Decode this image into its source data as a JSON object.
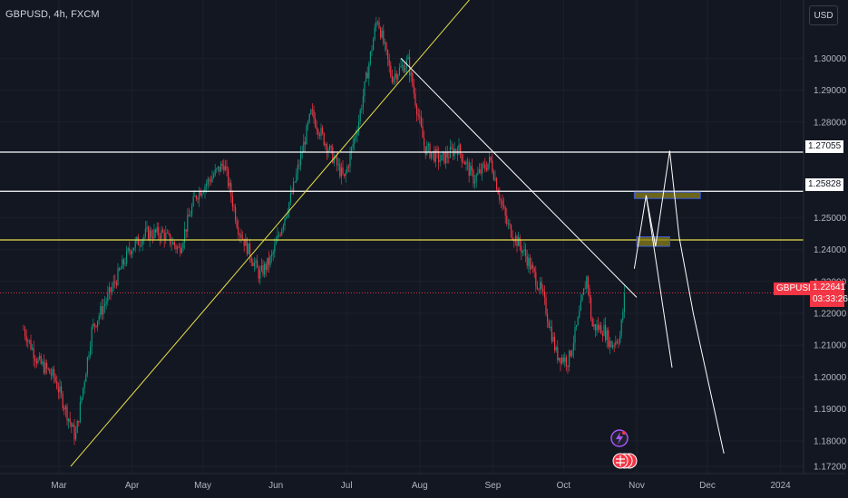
{
  "header": {
    "symbol_title": "GBPUSD, 4h, FXCM",
    "currency": "USD"
  },
  "price_marker": {
    "symbol": "GBPUSD",
    "price": "1.22641",
    "countdown": "03:33:26",
    "color": "#f23645"
  },
  "level_labels": [
    "1.27055",
    "1.25828"
  ],
  "colors": {
    "background": "#131722",
    "bull": "#089981",
    "bear": "#f23645",
    "trendline_yellow": "#e6e04a",
    "projection_white": "#ffffff",
    "zone_fill": "#8a7f1a",
    "axis_text": "#b2b5be"
  },
  "chart_data": {
    "type": "candlestick",
    "title": "GBPUSD, 4h, FXCM",
    "x_labels": [
      "Mar",
      "Apr",
      "May",
      "Jun",
      "Jul",
      "Aug",
      "Sep",
      "Oct",
      "Nov",
      "Dec",
      "2024"
    ],
    "y_ticks": [
      "1.30000",
      "1.29000",
      "1.28000",
      "1.25000",
      "1.24000",
      "1.23000",
      "1.22000",
      "1.21000",
      "1.20000",
      "1.19000",
      "1.18000",
      "1.17200"
    ],
    "ylim": [
      1.172,
      1.316
    ],
    "price_path": [
      [
        "2023-02-14",
        1.215
      ],
      [
        "2023-02-20",
        1.205
      ],
      [
        "2023-02-27",
        1.2
      ],
      [
        "2023-03-08",
        1.181
      ],
      [
        "2023-03-15",
        1.215
      ],
      [
        "2023-03-23",
        1.227
      ],
      [
        "2023-03-31",
        1.24
      ],
      [
        "2023-04-07",
        1.245
      ],
      [
        "2023-04-14",
        1.245
      ],
      [
        "2023-04-21",
        1.24
      ],
      [
        "2023-04-28",
        1.257
      ],
      [
        "2023-05-10",
        1.267
      ],
      [
        "2023-05-16",
        1.247
      ],
      [
        "2023-05-25",
        1.232
      ],
      [
        "2023-05-30",
        1.237
      ],
      [
        "2023-06-08",
        1.258
      ],
      [
        "2023-06-16",
        1.283
      ],
      [
        "2023-06-21",
        1.275
      ],
      [
        "2023-06-30",
        1.262
      ],
      [
        "2023-07-06",
        1.28
      ],
      [
        "2023-07-14",
        1.313
      ],
      [
        "2023-07-20",
        1.294
      ],
      [
        "2023-07-27",
        1.299
      ],
      [
        "2023-08-03",
        1.272
      ],
      [
        "2023-08-10",
        1.268
      ],
      [
        "2023-08-17",
        1.272
      ],
      [
        "2023-08-24",
        1.262
      ],
      [
        "2023-08-31",
        1.268
      ],
      [
        "2023-09-07",
        1.248
      ],
      [
        "2023-09-15",
        1.238
      ],
      [
        "2023-09-22",
        1.226
      ],
      [
        "2023-09-28",
        1.207
      ],
      [
        "2023-10-03",
        1.205
      ],
      [
        "2023-10-07",
        1.217
      ],
      [
        "2023-10-11",
        1.232
      ],
      [
        "2023-10-13",
        1.216
      ],
      [
        "2023-10-18",
        1.215
      ],
      [
        "2023-10-21",
        1.21
      ],
      [
        "2023-10-25",
        1.213
      ],
      [
        "2023-10-27",
        1.2264
      ]
    ],
    "horizontal_levels": [
      {
        "value": 1.27055,
        "color": "#ffffff",
        "label": "1.27055"
      },
      {
        "value": 1.25828,
        "color": "#ffffff",
        "label": "1.25828"
      },
      {
        "value": 1.243,
        "color": "#e6e04a",
        "label": ""
      }
    ],
    "current_price": {
      "value": 1.22641,
      "color": "#f23645"
    },
    "trendlines": [
      {
        "from": [
          "2023-03-06",
          1.172
        ],
        "to": [
          "2023-08-24",
          1.32
        ],
        "color": "#e6e04a"
      },
      {
        "from": [
          "2023-07-24",
          1.3
        ],
        "to": [
          "2023-11-01",
          1.225
        ],
        "color": "#ffffff"
      }
    ],
    "zones": [
      {
        "x": [
          "2023-10-31",
          "2023-11-28"
        ],
        "y": [
          1.256,
          1.258
        ]
      },
      {
        "x": [
          "2023-11-01",
          "2023-11-15"
        ],
        "y": [
          1.241,
          1.244
        ]
      }
    ],
    "projection": [
      [
        "2023-10-31",
        1.234
      ],
      [
        "2023-11-05",
        1.257
      ],
      [
        "2023-11-09",
        1.241
      ],
      [
        "2023-11-15",
        1.271
      ],
      [
        "2023-11-19",
        1.244
      ],
      [
        "2023-11-25",
        1.22
      ],
      [
        "2023-12-08",
        1.176
      ]
    ],
    "projection_alt": [
      [
        "2023-11-05",
        1.257
      ],
      [
        "2023-11-16",
        1.203
      ]
    ]
  }
}
